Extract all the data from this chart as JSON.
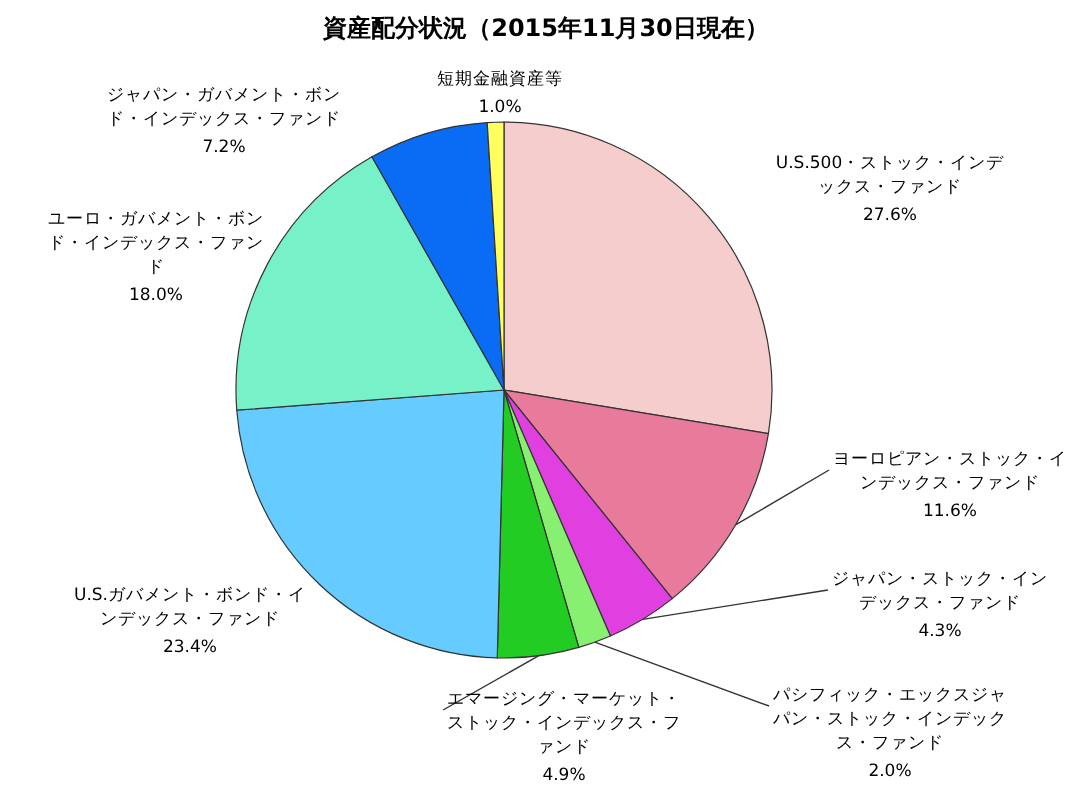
{
  "chart_data": {
    "type": "pie",
    "title": "資産配分状況（2015年11月30日現在）",
    "categories": [
      "U.S.500・ストック・インデックス・ファンド",
      "ヨーロピアン・ストック・インデックス・ファンド",
      "ジャパン・ストック・インデックス・ファンド",
      "パシフィック・エックスジャパン・ストック・インデックス・ファンド",
      "エマージング・マーケット・ストック・インデックス・ファンド",
      "U.S.ガバメント・ボンド・インデックス・ファンド",
      "ユーロ・ガバメント・ボンド・インデックス・ファンド",
      "ジャパン・ガバメント・ボンド・インデックス・ファンド",
      "短期金融資産等"
    ],
    "values": [
      27.6,
      11.6,
      4.3,
      2.0,
      4.9,
      23.4,
      18.0,
      7.2,
      1.0
    ],
    "value_labels": [
      "27.6%",
      "11.6%",
      "4.3%",
      "2.0%",
      "4.9%",
      "23.4%",
      "18.0%",
      "7.2%",
      "1.0%"
    ],
    "colors": [
      "#f6cdcd",
      "#e87a9c",
      "#e040e0",
      "#88f070",
      "#22cc22",
      "#66ccff",
      "#77f2c8",
      "#0a6cf5",
      "#ffff60"
    ]
  }
}
